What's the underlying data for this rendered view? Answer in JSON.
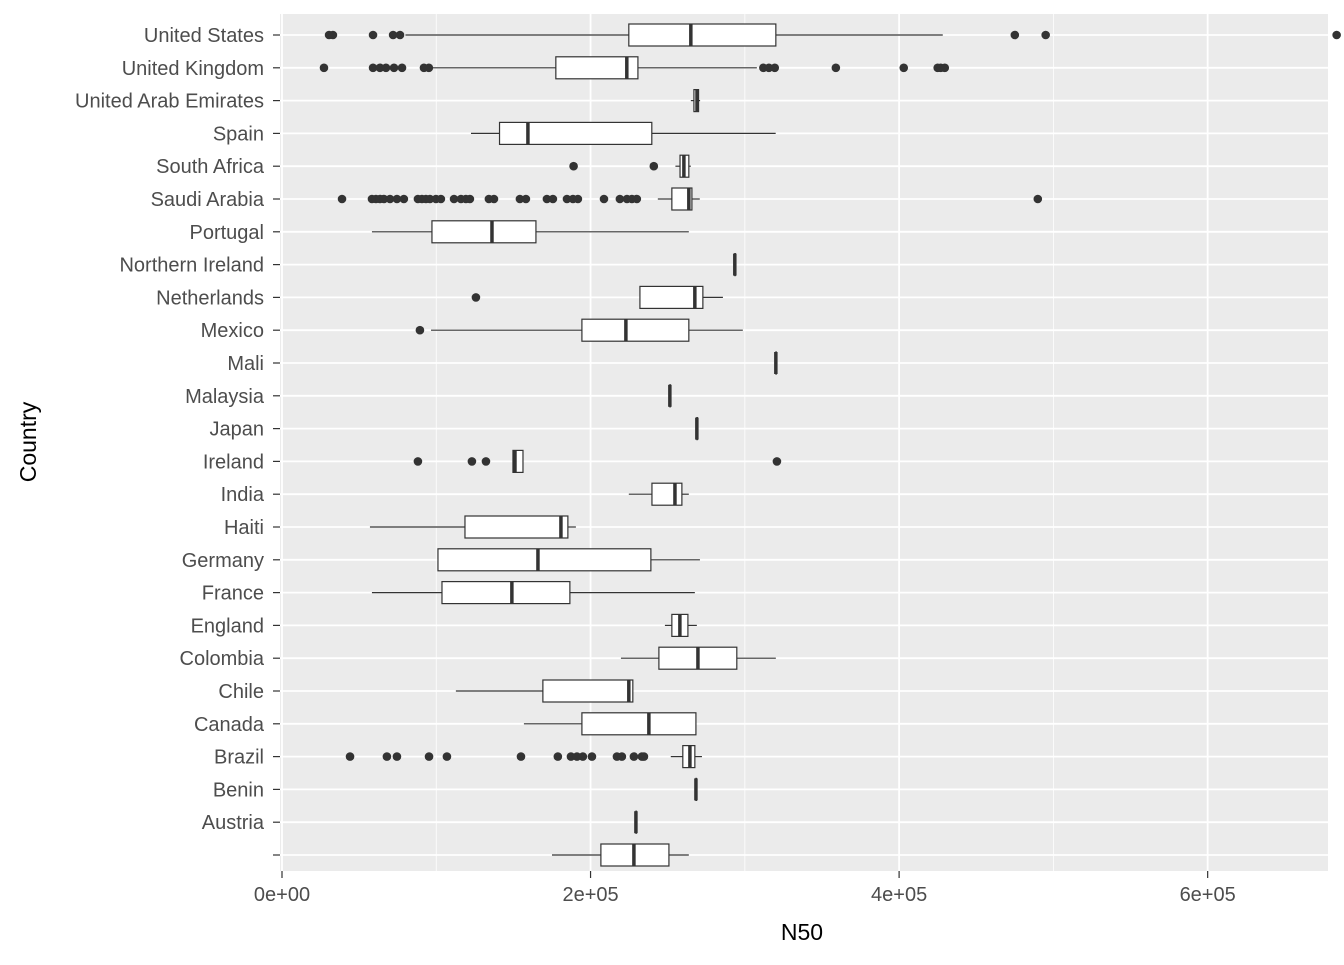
{
  "chart_data": {
    "type": "boxplot",
    "orientation": "horizontal",
    "title": "",
    "xlabel": "N50",
    "ylabel": "Country",
    "xlim": [
      0,
      678000
    ],
    "x_ticks": [
      0,
      200000,
      400000,
      600000
    ],
    "x_tick_labels": [
      "0e+00",
      "2e+05",
      "4e+05",
      "6e+05"
    ],
    "grid": true,
    "legend": "none",
    "categories": [
      {
        "name": "United States",
        "stats": [
          80000,
          224800,
          265000,
          320100,
          428300
        ],
        "outliers": [
          30500,
          33000,
          59000,
          72000,
          76500,
          475000,
          495000,
          683600
        ]
      },
      {
        "name": "United Kingdom",
        "stats": [
          96500,
          177500,
          223500,
          230700,
          307800
        ],
        "outliers": [
          27200,
          59000,
          63500,
          67400,
          72600,
          77800,
          92000,
          95200,
          312000,
          315600,
          319400,
          359000,
          403000,
          425000,
          427000,
          429600
        ]
      },
      {
        "name": "United Arab Emirates",
        "stats": [
          265000,
          267000,
          269000,
          270000,
          271000
        ],
        "outliers": []
      },
      {
        "name": "Spain",
        "stats": [
          122500,
          141000,
          159400,
          239700,
          320000
        ],
        "outliers": []
      },
      {
        "name": "South Africa",
        "stats": [
          255000,
          258000,
          260500,
          263700,
          265000
        ],
        "outliers": [
          189000,
          241000
        ]
      },
      {
        "name": "Saudi Arabia",
        "stats": [
          243600,
          252700,
          263700,
          265700,
          270800
        ],
        "outliers": [
          38900,
          58300,
          60900,
          63500,
          66100,
          70000,
          74500,
          79000,
          88100,
          90700,
          93300,
          95900,
          99800,
          103000,
          111500,
          116000,
          119200,
          121800,
          134100,
          137400,
          154200,
          158100,
          171700,
          175600,
          184700,
          188600,
          191800,
          208700,
          219000,
          223600,
          226800,
          230000,
          489900
        ]
      },
      {
        "name": "Portugal",
        "stats": [
          58300,
          97200,
          136100,
          164600,
          263700
        ],
        "outliers": []
      },
      {
        "name": "Northern Ireland",
        "stats": [
          293500,
          293500,
          293500,
          293500,
          293500
        ],
        "outliers": []
      },
      {
        "name": "Netherlands",
        "stats": [
          232000,
          232000,
          267600,
          272800,
          285800
        ],
        "outliers": [
          125700
        ]
      },
      {
        "name": "Mexico",
        "stats": [
          96600,
          194400,
          222900,
          263700,
          298700
        ],
        "outliers": [
          89400
        ]
      },
      {
        "name": "Mali",
        "stats": [
          320100,
          320100,
          320100,
          320100,
          320100
        ],
        "outliers": []
      },
      {
        "name": "Malaysia",
        "stats": [
          251400,
          251400,
          251400,
          251400,
          251400
        ],
        "outliers": []
      },
      {
        "name": "Japan",
        "stats": [
          268900,
          268900,
          268900,
          268900,
          268900
        ],
        "outliers": []
      },
      {
        "name": "Ireland",
        "stats": [
          149700,
          149700,
          151000,
          156200,
          156200
        ],
        "outliers": [
          88100,
          123100,
          132200,
          320800
        ]
      },
      {
        "name": "India",
        "stats": [
          224800,
          239800,
          254700,
          259200,
          263700
        ],
        "outliers": []
      },
      {
        "name": "Haiti",
        "stats": [
          57000,
          118600,
          180800,
          185300,
          190500
        ],
        "outliers": []
      },
      {
        "name": "Germany",
        "stats": [
          101100,
          101100,
          165900,
          239100,
          270900
        ],
        "outliers": []
      },
      {
        "name": "France",
        "stats": [
          58300,
          103700,
          149000,
          186600,
          267600
        ],
        "outliers": []
      },
      {
        "name": "England",
        "stats": [
          248200,
          252700,
          257900,
          263100,
          268900
        ],
        "outliers": []
      },
      {
        "name": "Colombia",
        "stats": [
          219700,
          244300,
          269600,
          294800,
          320100
        ],
        "outliers": []
      },
      {
        "name": "Chile",
        "stats": [
          112700,
          169100,
          224800,
          227400,
          227400
        ],
        "outliers": []
      },
      {
        "name": "Canada",
        "stats": [
          156800,
          194400,
          237800,
          268300,
          268300
        ],
        "outliers": []
      },
      {
        "name": "Brazil",
        "stats": [
          252000,
          259800,
          264400,
          267600,
          272200
        ],
        "outliers": [
          44100,
          68000,
          74500,
          95300,
          106900,
          154900,
          178800,
          187300,
          191200,
          195000,
          200900,
          217100,
          220300,
          228100,
          233300,
          234600
        ]
      },
      {
        "name": "Benin",
        "stats": [
          268300,
          268300,
          268300,
          268300,
          268300
        ],
        "outliers": []
      },
      {
        "name": "Austria",
        "stats": [
          229400,
          229400,
          229400,
          229400,
          229400
        ],
        "outliers": []
      },
      {
        "name": "",
        "stats": [
          175000,
          206700,
          228100,
          250800,
          263700
        ],
        "outliers": []
      }
    ],
    "colors": {
      "panel": "#EBEBEB",
      "grid": "#FFFFFF",
      "box_line": "#333333",
      "box_fill": "#FFFFFF",
      "outlier": "#333333",
      "tick_text": "#4D4D4D"
    }
  }
}
